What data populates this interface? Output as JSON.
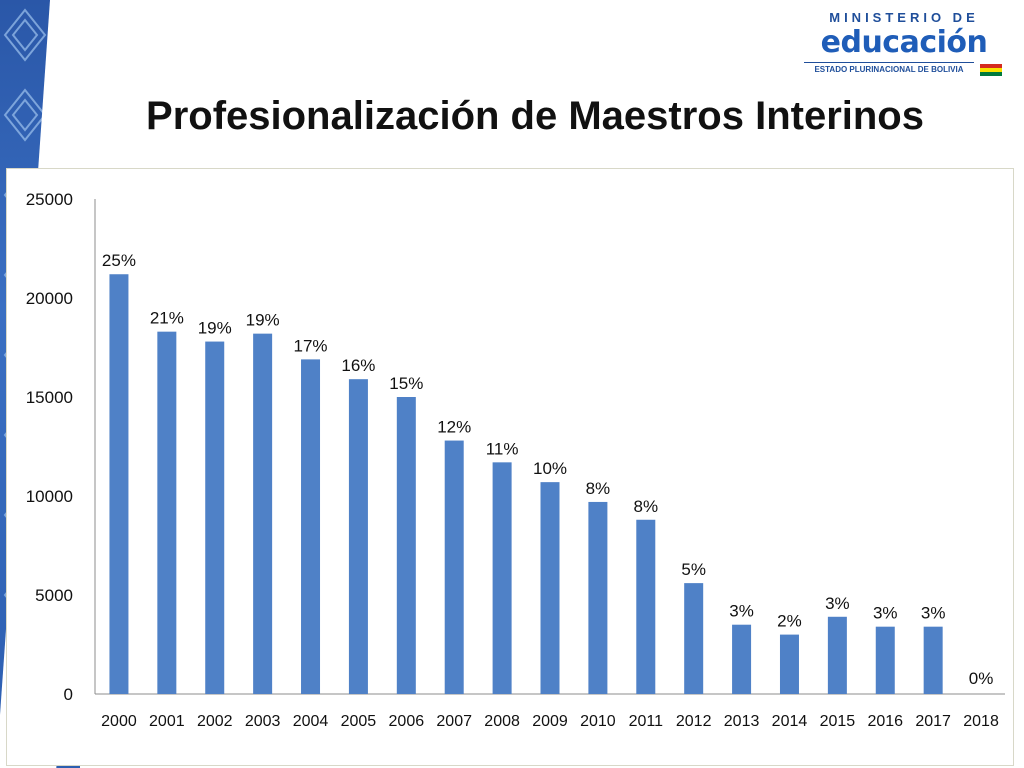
{
  "slide": {
    "title": "Profesionalización de Maestros Interinos"
  },
  "logo": {
    "top": "MINISTERIO DE",
    "main": "educación",
    "sub": "ESTADO PLURINACIONAL DE BOLIVIA"
  },
  "colors": {
    "bar": "#4f81c7",
    "side_band": "#2a57a8",
    "axis": "#8c8c8c"
  },
  "chart_data": {
    "type": "bar",
    "categories": [
      "2000",
      "2001",
      "2002",
      "2003",
      "2004",
      "2005",
      "2006",
      "2007",
      "2008",
      "2009",
      "2010",
      "2011",
      "2012",
      "2013",
      "2014",
      "2015",
      "2016",
      "2017",
      "2018"
    ],
    "values": [
      21200,
      18300,
      17800,
      18200,
      16900,
      15900,
      15000,
      12800,
      11700,
      10700,
      9700,
      8800,
      5600,
      3500,
      3000,
      3900,
      3400,
      3400,
      0
    ],
    "data_labels": [
      "25%",
      "21%",
      "19%",
      "19%",
      "17%",
      "16%",
      "15%",
      "12%",
      "11%",
      "10%",
      "8%",
      "8%",
      "5%",
      "3%",
      "2%",
      "3%",
      "3%",
      "3%",
      "0%"
    ],
    "yticks": [
      "0",
      "5000",
      "10000",
      "15000",
      "20000",
      "25000"
    ],
    "ylim": [
      0,
      25000
    ],
    "grid": false,
    "legend": false
  }
}
